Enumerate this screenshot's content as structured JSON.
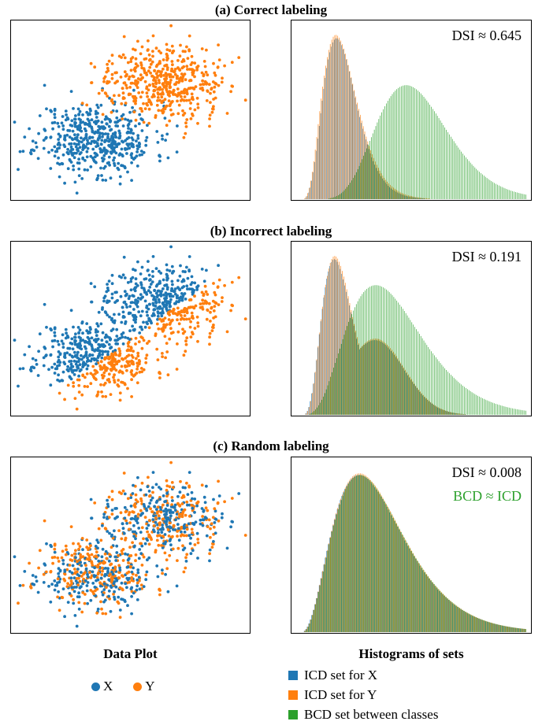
{
  "colors": {
    "x": "#1f77b4",
    "y": "#ff7f0e",
    "bcd": "#2ca02c"
  },
  "footer": {
    "left_title": "Data Plot",
    "right_title": "Histograms of sets",
    "scatter_legend": [
      {
        "label": "X",
        "color": "#1f77b4"
      },
      {
        "label": "Y",
        "color": "#ff7f0e"
      }
    ],
    "hist_legend": [
      {
        "label": "ICD set for X",
        "color": "#1f77b4"
      },
      {
        "label": "ICD set for Y",
        "color": "#ff7f0e"
      },
      {
        "label": "BCD set between classes",
        "color": "#2ca02c"
      }
    ]
  },
  "chart_data": [
    {
      "type": "scatter",
      "panel": "a",
      "title": "(a) Correct labeling",
      "xlabel": "",
      "ylabel": "",
      "ticks": false,
      "series": [
        {
          "name": "X",
          "color": "#1f77b4",
          "center": [
            -1.0,
            -1.0
          ],
          "spread": [
            0.85,
            0.65
          ],
          "n": 500
        },
        {
          "name": "Y",
          "color": "#ff7f0e",
          "center": [
            1.0,
            1.0
          ],
          "spread": [
            0.85,
            0.65
          ],
          "n": 500
        }
      ],
      "labeling": "correct",
      "xlim": [
        -3.5,
        3.5
      ],
      "ylim": [
        -3.2,
        3.2
      ]
    },
    {
      "type": "bar",
      "panel": "a",
      "annotation": "DSI ≈ 0.645",
      "series": [
        {
          "name": "ICD set for X",
          "color": "#1f77b4",
          "mode": 0.16,
          "width": 0.075,
          "height": 0.96
        },
        {
          "name": "ICD set for Y",
          "color": "#ff7f0e",
          "mode": 0.155,
          "width": 0.078,
          "height": 0.98
        },
        {
          "name": "BCD set between classes",
          "color": "#2ca02c",
          "mode": 0.465,
          "width": 0.16,
          "height": 0.68
        }
      ],
      "xlim": [
        0,
        1
      ],
      "ylim": [
        0,
        1
      ]
    },
    {
      "type": "scatter",
      "panel": "b",
      "title": "(b) Incorrect labeling",
      "xlabel": "",
      "ylabel": "",
      "ticks": false,
      "labeling": "split",
      "series": [
        {
          "name": "X",
          "color": "#1f77b4"
        },
        {
          "name": "Y",
          "color": "#ff7f0e"
        }
      ],
      "xlim": [
        -3.5,
        3.5
      ],
      "ylim": [
        -3.2,
        3.2
      ]
    },
    {
      "type": "bar",
      "panel": "b",
      "annotation": "DSI ≈ 0.191",
      "series": [
        {
          "name": "ICD set for X",
          "color": "#1f77b4",
          "mode": 0.15,
          "width": 0.07,
          "height": 0.96,
          "shoulder": 0.48
        },
        {
          "name": "ICD set for Y",
          "color": "#ff7f0e",
          "mode": 0.15,
          "width": 0.07,
          "height": 0.98,
          "shoulder": 0.48
        },
        {
          "name": "BCD set between classes",
          "color": "#2ca02c",
          "mode": 0.33,
          "width": 0.17,
          "height": 0.8
        }
      ],
      "xlim": [
        0,
        1
      ],
      "ylim": [
        0,
        1
      ]
    },
    {
      "type": "scatter",
      "panel": "c",
      "title": "(c) Random labeling",
      "xlabel": "",
      "ylabel": "",
      "ticks": false,
      "labeling": "random",
      "series": [
        {
          "name": "X",
          "color": "#1f77b4"
        },
        {
          "name": "Y",
          "color": "#ff7f0e"
        }
      ],
      "xlim": [
        -3.5,
        3.5
      ],
      "ylim": [
        -3.2,
        3.2
      ]
    },
    {
      "type": "bar",
      "panel": "c",
      "annotation": "DSI ≈ 0.008",
      "annotation2": "BCD ≈ ICD",
      "series": [
        {
          "name": "ICD set for X",
          "color": "#1f77b4",
          "mode": 0.26,
          "width": 0.16,
          "height": 0.96
        },
        {
          "name": "ICD set for Y",
          "color": "#ff7f0e",
          "mode": 0.26,
          "width": 0.16,
          "height": 0.97
        },
        {
          "name": "BCD set between classes",
          "color": "#2ca02c",
          "mode": 0.26,
          "width": 0.16,
          "height": 0.96
        }
      ],
      "xlim": [
        0,
        1
      ],
      "ylim": [
        0,
        1
      ]
    }
  ]
}
